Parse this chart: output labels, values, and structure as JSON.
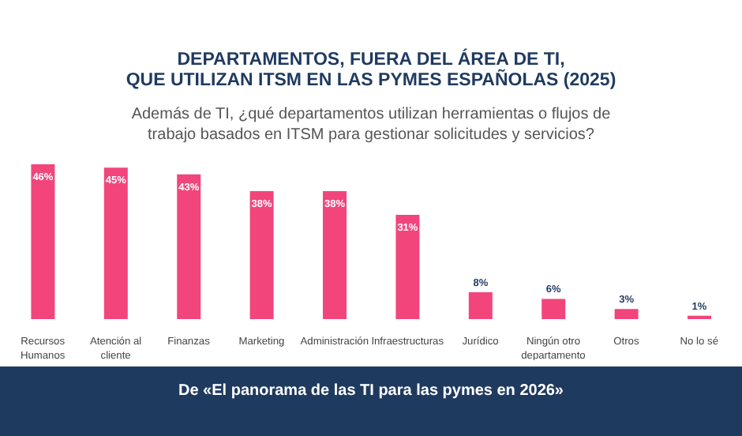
{
  "chart_data": {
    "type": "bar",
    "title": "DEPARTAMENTOS, FUERA DEL ÁREA DE TI,\nQUE UTILIZAN ITSM EN LAS PYMES ESPAÑOLAS (2025)",
    "subtitle": "Además de TI, ¿qué departamentos utilizan herramientas o flujos de trabajo basados en ITSM para gestionar solicitudes y servicios?",
    "categories": [
      "Recursos Humanos",
      "Atención al cliente",
      "Finanzas",
      "Marketing",
      "Administración",
      "Infraestructuras",
      "Jurídico",
      "Ningún otro departamento",
      "Otros",
      "No lo sé"
    ],
    "values": [
      46,
      45,
      43,
      38,
      38,
      31,
      8,
      6,
      3,
      1
    ],
    "value_labels": [
      "46%",
      "45%",
      "43%",
      "38%",
      "38%",
      "31%",
      "8%",
      "6%",
      "3%",
      "1%"
    ],
    "color": "#f2457c",
    "annotations": [
      "De «El panorama de las TI para las pymes en 2026»"
    ]
  }
}
